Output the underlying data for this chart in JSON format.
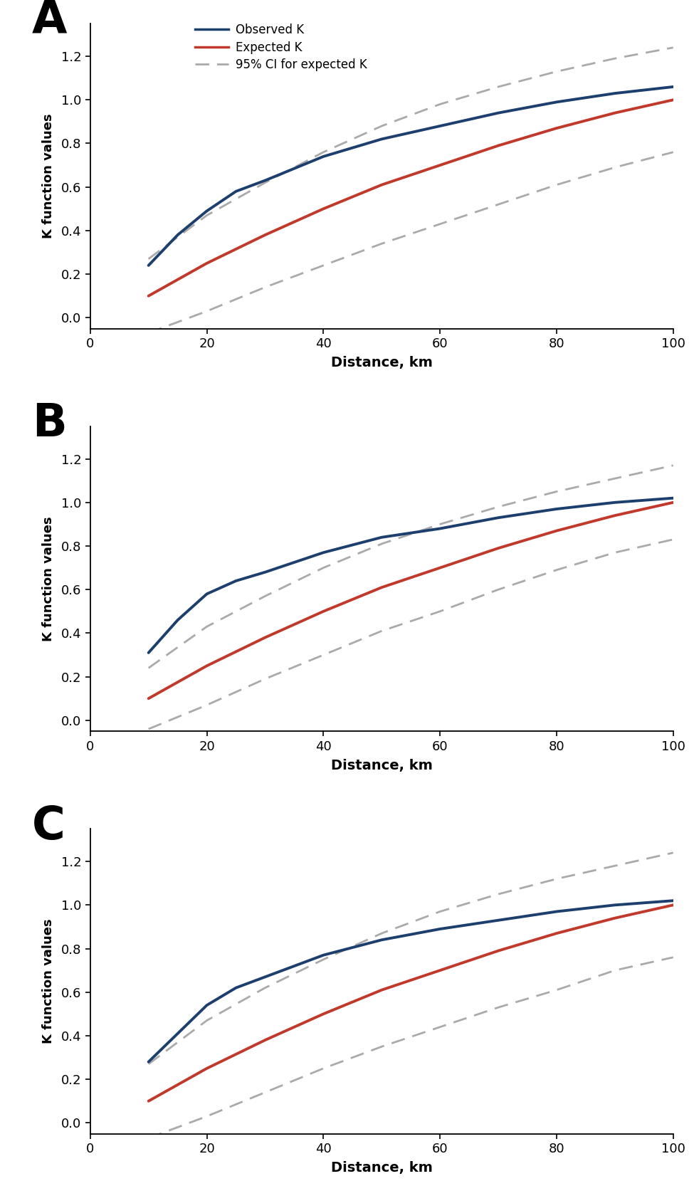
{
  "panels": [
    "A",
    "B",
    "C"
  ],
  "xlim": [
    0,
    100
  ],
  "ylim": [
    -0.05,
    1.35
  ],
  "yticks": [
    0,
    0.2,
    0.4,
    0.6,
    0.8,
    1.0,
    1.2
  ],
  "xticks": [
    0,
    20,
    40,
    60,
    80,
    100
  ],
  "xlabel": "Distance, km",
  "ylabel": "K function values",
  "observed_color": "#1c3f6e",
  "expected_color": "#c0392b",
  "ci_color": "#aaaaaa",
  "legend_labels": [
    "Observed K",
    "Expected K",
    "95% CI for expected K"
  ],
  "panel_A": {
    "observed_x": [
      10,
      15,
      20,
      25,
      30,
      40,
      50,
      60,
      70,
      80,
      90,
      100
    ],
    "observed_y": [
      0.24,
      0.38,
      0.49,
      0.58,
      0.63,
      0.74,
      0.82,
      0.88,
      0.94,
      0.99,
      1.03,
      1.06
    ],
    "expected_x": [
      10,
      20,
      30,
      40,
      50,
      60,
      70,
      80,
      90,
      100
    ],
    "expected_y": [
      0.1,
      0.25,
      0.38,
      0.5,
      0.61,
      0.7,
      0.79,
      0.87,
      0.94,
      1.0
    ],
    "ci_upper_x": [
      10,
      20,
      30,
      40,
      50,
      60,
      70,
      80,
      90,
      100
    ],
    "ci_upper_y": [
      0.27,
      0.47,
      0.62,
      0.76,
      0.88,
      0.98,
      1.06,
      1.13,
      1.19,
      1.24
    ],
    "ci_lower_x": [
      10,
      20,
      30,
      40,
      50,
      60,
      70,
      80,
      90,
      100
    ],
    "ci_lower_y": [
      -0.07,
      0.03,
      0.14,
      0.24,
      0.34,
      0.43,
      0.52,
      0.61,
      0.69,
      0.76
    ]
  },
  "panel_B": {
    "observed_x": [
      10,
      15,
      20,
      25,
      30,
      40,
      50,
      60,
      70,
      80,
      90,
      100
    ],
    "observed_y": [
      0.31,
      0.46,
      0.58,
      0.64,
      0.68,
      0.77,
      0.84,
      0.88,
      0.93,
      0.97,
      1.0,
      1.02
    ],
    "expected_x": [
      10,
      20,
      30,
      40,
      50,
      60,
      70,
      80,
      90,
      100
    ],
    "expected_y": [
      0.1,
      0.25,
      0.38,
      0.5,
      0.61,
      0.7,
      0.79,
      0.87,
      0.94,
      1.0
    ],
    "ci_upper_x": [
      10,
      20,
      30,
      40,
      50,
      60,
      70,
      80,
      90,
      100
    ],
    "ci_upper_y": [
      0.24,
      0.43,
      0.57,
      0.7,
      0.81,
      0.9,
      0.98,
      1.05,
      1.11,
      1.17
    ],
    "ci_lower_x": [
      10,
      20,
      30,
      40,
      50,
      60,
      70,
      80,
      90,
      100
    ],
    "ci_lower_y": [
      -0.04,
      0.07,
      0.19,
      0.3,
      0.41,
      0.5,
      0.6,
      0.69,
      0.77,
      0.83
    ]
  },
  "panel_C": {
    "observed_x": [
      10,
      15,
      20,
      25,
      30,
      40,
      50,
      60,
      70,
      80,
      90,
      100
    ],
    "observed_y": [
      0.28,
      0.41,
      0.54,
      0.62,
      0.67,
      0.77,
      0.84,
      0.89,
      0.93,
      0.97,
      1.0,
      1.02
    ],
    "expected_x": [
      10,
      20,
      30,
      40,
      50,
      60,
      70,
      80,
      90,
      100
    ],
    "expected_y": [
      0.1,
      0.25,
      0.38,
      0.5,
      0.61,
      0.7,
      0.79,
      0.87,
      0.94,
      1.0
    ],
    "ci_upper_x": [
      10,
      20,
      30,
      40,
      50,
      60,
      70,
      80,
      90,
      100
    ],
    "ci_upper_y": [
      0.27,
      0.47,
      0.62,
      0.75,
      0.87,
      0.97,
      1.05,
      1.12,
      1.18,
      1.24
    ],
    "ci_lower_x": [
      10,
      20,
      30,
      40,
      50,
      60,
      70,
      80,
      90,
      100
    ],
    "ci_lower_y": [
      -0.07,
      0.03,
      0.14,
      0.25,
      0.35,
      0.44,
      0.53,
      0.61,
      0.7,
      0.76
    ]
  }
}
